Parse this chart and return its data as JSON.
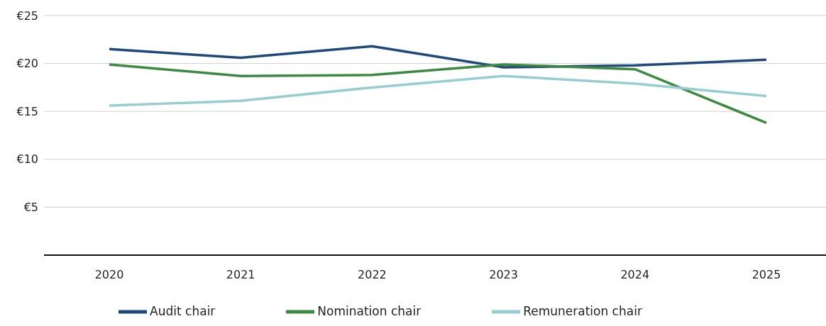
{
  "chart_data": {
    "type": "line",
    "categories": [
      "2020",
      "2021",
      "2022",
      "2023",
      "2024",
      "2025"
    ],
    "series": [
      {
        "name": "Audit chair",
        "color": "#1f497d",
        "values": [
          21.5,
          20.6,
          21.8,
          19.6,
          19.8,
          20.4
        ]
      },
      {
        "name": "Nomination chair",
        "color": "#3a8a3f",
        "values": [
          19.9,
          18.7,
          18.8,
          19.9,
          19.4,
          13.8
        ]
      },
      {
        "name": "Remuneration chair",
        "color": "#95cdd3",
        "values": [
          15.6,
          16.1,
          17.5,
          18.7,
          17.9,
          16.6
        ]
      }
    ],
    "ylim": [
      0,
      25
    ],
    "yticks": [
      {
        "value": 0,
        "label": null
      },
      {
        "value": 5,
        "label": "€5"
      },
      {
        "value": 10,
        "label": "€10"
      },
      {
        "value": 15,
        "label": "€15"
      },
      {
        "value": 20,
        "label": "€20"
      },
      {
        "value": 25,
        "label": "€25"
      }
    ],
    "grid": "y",
    "legend": "bottom",
    "marker": "none",
    "line_style": "solid"
  }
}
